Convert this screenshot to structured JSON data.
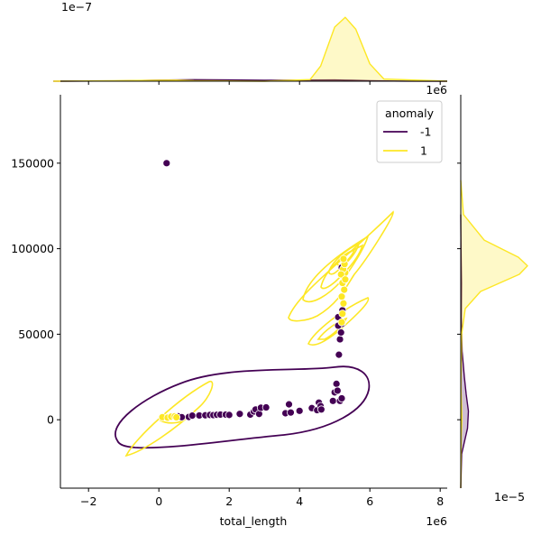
{
  "chart_data": [
    {
      "type": "scatter",
      "panel": "joint",
      "xlabel": "total_length",
      "ylabel": "",
      "x_offset_label": "1e6",
      "x_ticks": [
        "−2",
        "0",
        "2",
        "4",
        "6",
        "8"
      ],
      "x_tick_values": [
        -2,
        0,
        2,
        4,
        6,
        8
      ],
      "y_ticks": [
        "0",
        "50000",
        "100000",
        "150000"
      ],
      "y_tick_values": [
        0,
        50000,
        100000,
        150000
      ],
      "xlim": [
        -2.8,
        8.2
      ],
      "ylim": [
        -40000,
        190000
      ],
      "x_scale_note": "x values in units of 1e6",
      "grid": false,
      "legend": {
        "title": "anomaly",
        "placement": "top-right",
        "entries": [
          {
            "label": "-1",
            "color": "#440154"
          },
          {
            "label": "1",
            "color": "#fde725"
          }
        ]
      },
      "series": [
        {
          "name": "-1",
          "color": "#440154",
          "points": [
            [
              0.22,
              150000
            ],
            [
              0.45,
              1800
            ],
            [
              0.55,
              2000
            ],
            [
              0.65,
              1500
            ],
            [
              0.85,
              1600
            ],
            [
              0.95,
              2400
            ],
            [
              1.15,
              2500
            ],
            [
              1.32,
              2600
            ],
            [
              1.45,
              2800
            ],
            [
              1.55,
              2700
            ],
            [
              1.65,
              2900
            ],
            [
              1.75,
              3000
            ],
            [
              1.9,
              3000
            ],
            [
              2.0,
              2800
            ],
            [
              2.3,
              3400
            ],
            [
              2.6,
              3000
            ],
            [
              2.7,
              4800
            ],
            [
              2.75,
              6000
            ],
            [
              2.85,
              3400
            ],
            [
              2.9,
              7000
            ],
            [
              3.05,
              7200
            ],
            [
              3.6,
              3800
            ],
            [
              3.7,
              9000
            ],
            [
              3.75,
              4200
            ],
            [
              4.0,
              5200
            ],
            [
              4.35,
              6800
            ],
            [
              4.5,
              5600
            ],
            [
              4.55,
              10000
            ],
            [
              4.6,
              8000
            ],
            [
              4.62,
              6000
            ],
            [
              4.95,
              11000
            ],
            [
              5.0,
              16000
            ],
            [
              5.05,
              21000
            ],
            [
              5.08,
              17000
            ],
            [
              5.15,
              11000
            ],
            [
              5.2,
              12500
            ],
            [
              5.12,
              38000
            ],
            [
              5.15,
              47000
            ],
            [
              5.18,
              51000
            ],
            [
              5.2,
              56000
            ],
            [
              5.1,
              60000
            ],
            [
              5.22,
              64000
            ],
            [
              5.25,
              90000
            ],
            [
              5.2,
              89000
            ],
            [
              5.1,
              55000
            ]
          ]
        },
        {
          "name": "1",
          "color": "#fde725",
          "points": [
            [
              0.1,
              1500
            ],
            [
              0.25,
              1200
            ],
            [
              0.35,
              1800
            ],
            [
              0.45,
              2000
            ],
            [
              0.5,
              1400
            ],
            [
              5.2,
              57000
            ],
            [
              5.22,
              62000
            ],
            [
              5.25,
              68000
            ],
            [
              5.2,
              72000
            ],
            [
              5.27,
              76000
            ],
            [
              5.22,
              80000
            ],
            [
              5.25,
              84000
            ],
            [
              5.3,
              86000
            ],
            [
              5.24,
              88000
            ],
            [
              5.28,
              91000
            ],
            [
              5.25,
              94000
            ],
            [
              5.18,
              85000
            ],
            [
              5.3,
              82000
            ]
          ]
        }
      ]
    },
    {
      "type": "area",
      "panel": "marginal-x",
      "offset_label": "1e−7",
      "axis_offset_label": "1e6",
      "series": [
        {
          "name": "-1",
          "color": "#440154",
          "x": [
            -3,
            -1,
            0,
            1,
            2,
            3,
            4,
            5,
            5.5,
            6,
            7,
            8.2
          ],
          "y": [
            0,
            0.03,
            0.1,
            0.14,
            0.12,
            0.08,
            0.1,
            0.12,
            0.08,
            0.04,
            0.01,
            0
          ]
        },
        {
          "name": "1",
          "color": "#fde725",
          "x": [
            -3,
            0,
            0.5,
            1,
            3,
            4.3,
            4.6,
            5.0,
            5.3,
            5.6,
            6.0,
            6.4,
            8.2
          ],
          "y": [
            0,
            0.08,
            0.1,
            0.04,
            0.0,
            0.15,
            1.4,
            5.0,
            5.9,
            4.8,
            1.6,
            0.2,
            0
          ]
        }
      ]
    },
    {
      "type": "area",
      "panel": "marginal-y",
      "offset_label": "1e−5",
      "series": [
        {
          "name": "-1",
          "color": "#440154",
          "y": [
            -40000,
            -20000,
            -5000,
            5000,
            15000,
            25000,
            40000,
            60000,
            80000,
            100000,
            120000
          ],
          "x": [
            0,
            0.1,
            0.75,
            0.85,
            0.6,
            0.4,
            0.15,
            0.06,
            0.08,
            0.03,
            0
          ]
        },
        {
          "name": "1",
          "color": "#fde725",
          "y": [
            -40000,
            -10000,
            0,
            5000,
            20000,
            50000,
            65000,
            75000,
            85000,
            90000,
            95000,
            105000,
            120000,
            140000
          ],
          "x": [
            0,
            0.05,
            0.12,
            0.1,
            0.02,
            0.1,
            0.5,
            2.2,
            6.5,
            7.4,
            6.4,
            2.6,
            0.3,
            0
          ]
        }
      ]
    }
  ]
}
